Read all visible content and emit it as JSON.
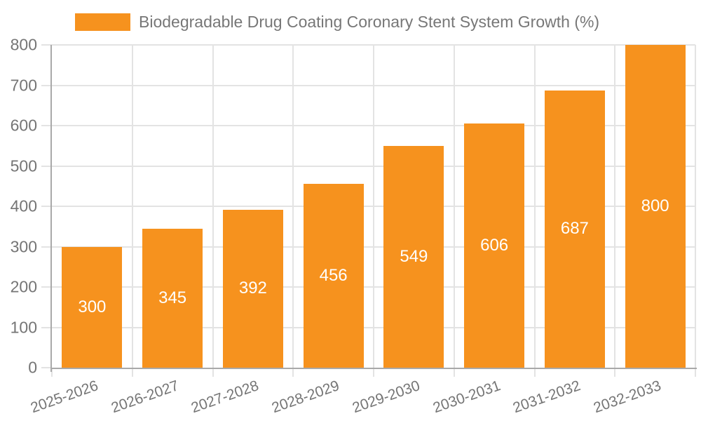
{
  "legend": {
    "label": "Biodegradable Drug Coating Coronary Stent System Growth (%)"
  },
  "chart_data": {
    "type": "bar",
    "title": "",
    "xlabel": "",
    "ylabel": "",
    "categories": [
      "2025-2026",
      "2026-2027",
      "2027-2028",
      "2028-2029",
      "2029-2030",
      "2030-2031",
      "2031-2032",
      "2032-2033"
    ],
    "series": [
      {
        "name": "Biodegradable Drug Coating Coronary Stent System Growth (%)",
        "values": [
          300,
          345,
          392,
          456,
          549,
          606,
          687,
          800
        ]
      }
    ],
    "ylim": [
      0,
      800
    ],
    "yticks": [
      0,
      100,
      200,
      300,
      400,
      500,
      600,
      700,
      800
    ],
    "grid": true,
    "legend_position": "top-left",
    "bar_value_labels": "inside-middle",
    "colors": {
      "bar": "#F6921E",
      "bar_label": "#FFFFFF",
      "axis_text": "#757575",
      "legend_text": "#777777",
      "gridline": "#E3E3E3",
      "axis_line": "#A9A9A9",
      "background": "#FFFFFF"
    }
  }
}
